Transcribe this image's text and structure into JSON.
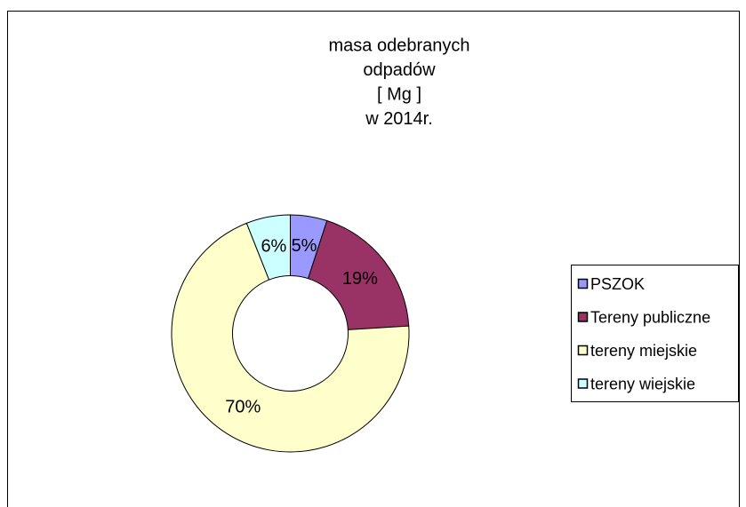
{
  "chart_data": {
    "type": "donut",
    "title": [
      "masa odebranych",
      "odpadów",
      "[ Mg ]",
      "w  2014r."
    ],
    "categories": [
      "PSZOK",
      "Tereny publiczne",
      "tereny miejskie",
      "tereny wiejskie"
    ],
    "values": [
      5,
      19,
      70,
      6
    ],
    "value_labels": [
      "5%",
      "19%",
      "70%",
      "6%"
    ],
    "colors": [
      "#9999ff",
      "#993366",
      "#ffffcc",
      "#ccffff"
    ],
    "legend": "right"
  }
}
